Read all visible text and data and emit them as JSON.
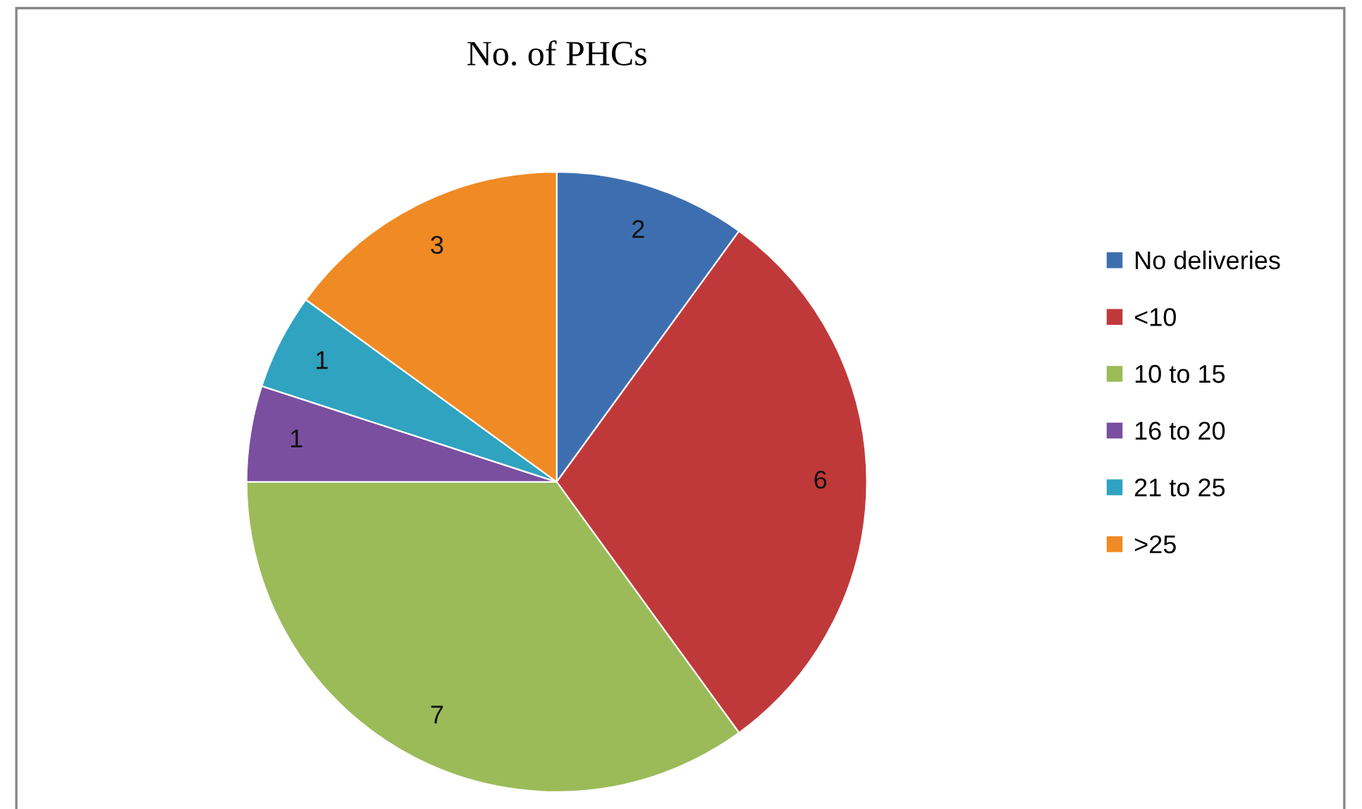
{
  "chart_data": {
    "type": "pie",
    "title": "No. of PHCs",
    "categories": [
      "No deliveries",
      "<10",
      "10 to 15",
      "16 to 20",
      "21 to 25",
      ">25"
    ],
    "values": [
      2,
      6,
      7,
      1,
      1,
      3
    ],
    "colors": [
      "#3d6fb0",
      "#c0393a",
      "#9bbb59",
      "#7a4fa0",
      "#2fa3c0",
      "#f08a24"
    ],
    "data_labels": true,
    "legend": "right"
  }
}
